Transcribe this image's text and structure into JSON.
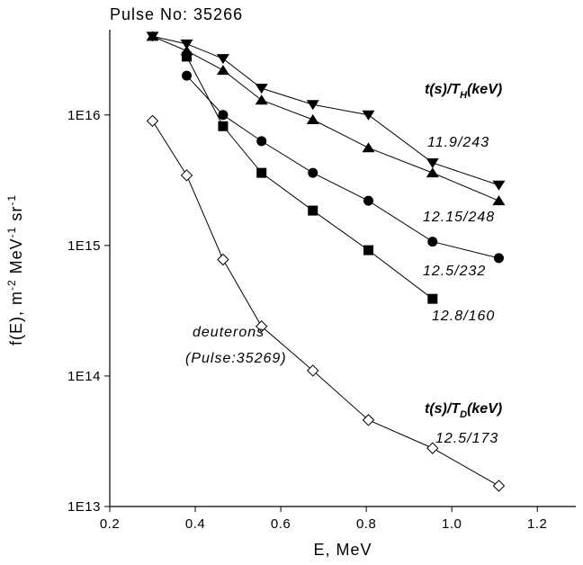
{
  "chart_data": {
    "type": "line",
    "title": "Pulse No: 35266",
    "x_label": "E, MeV",
    "y_label": [
      {
        "text": "f(E), m"
      },
      {
        "sup": "-2"
      },
      {
        "text": " MeV"
      },
      {
        "sup": "-1"
      },
      {
        "text": " sr"
      },
      {
        "sup": "-1"
      }
    ],
    "log_y": true,
    "xlim": [
      0.2,
      1.29
    ],
    "ylim": [
      10000000000000.0,
      4.5e+16
    ],
    "xticks": [
      0.2,
      0.4,
      0.6,
      0.8,
      {
        "value": 1,
        "label": "1.0"
      },
      1.2
    ],
    "yticks": [
      {
        "value": 10000000000000.0,
        "label": "1E13"
      },
      {
        "value": 100000000000000.0,
        "label": "1E14"
      },
      {
        "value": 1000000000000000.0,
        "label": "1E15"
      },
      {
        "value": 1e+16,
        "label": "1E16"
      }
    ],
    "series": [
      {
        "name": "11.9/243",
        "color": "#000000",
        "marker": "triangle-down",
        "x": [
          0.3,
          0.38,
          0.465,
          0.555,
          0.675,
          0.805,
          0.955,
          1.11
        ],
        "values": [
          4e+16,
          3.5e+16,
          2.7e+16,
          1.6e+16,
          1.2e+16,
          1e+16,
          4300000000000000.0,
          2900000000000000.0
        ]
      },
      {
        "name": "12.15/248",
        "color": "#000000",
        "marker": "triangle-up",
        "x": [
          0.3,
          0.38,
          0.465,
          0.555,
          0.675,
          0.805,
          0.955,
          1.11
        ],
        "values": [
          4e+16,
          3.1e+16,
          2.2e+16,
          1.3e+16,
          9200000000000000.0,
          5600000000000000.0,
          3600000000000000.0,
          2200000000000000.0
        ]
      },
      {
        "name": "12.5/232",
        "color": "#000000",
        "marker": "circle",
        "x": [
          0.38,
          0.465,
          0.555,
          0.675,
          0.805,
          0.955,
          1.11
        ],
        "values": [
          2e+16,
          1e+16,
          6300000000000000.0,
          3600000000000000.0,
          2200000000000000.0,
          1070000000000000.0,
          800000000000000.0
        ]
      },
      {
        "name": "12.8/160",
        "color": "#000000",
        "marker": "square",
        "x": [
          0.38,
          0.465,
          0.555,
          0.675,
          0.805,
          0.955
        ],
        "values": [
          2.8e+16,
          8200000000000000.0,
          3600000000000000.0,
          1850000000000000.0,
          920000000000000.0,
          390000000000000.0
        ]
      },
      {
        "name": "12.5/173",
        "color": "#000000",
        "marker": "diamond-open",
        "x": [
          0.3,
          0.38,
          0.465,
          0.555,
          0.675,
          0.805,
          0.955,
          1.11
        ],
        "values": [
          9000000000000000.0,
          3450000000000000.0,
          780000000000000.0,
          240000000000000.0,
          110000000000000.0,
          46000000000000.0,
          28000000000000.0,
          14400000000000.0
        ]
      }
    ],
    "annotations": [
      {
        "parts": [
          {
            "text": "t(s)/T"
          },
          {
            "sub": "H"
          },
          {
            "text": "(keV)"
          }
        ]
      },
      {
        "parts": [
          {
            "text": "deuterons"
          }
        ]
      },
      {
        "parts": [
          {
            "text": "(Pulse:35269)"
          }
        ]
      },
      {
        "parts": [
          {
            "text": "t(s)/T"
          },
          {
            "sub": "D"
          },
          {
            "text": "(keV)"
          }
        ]
      }
    ]
  }
}
